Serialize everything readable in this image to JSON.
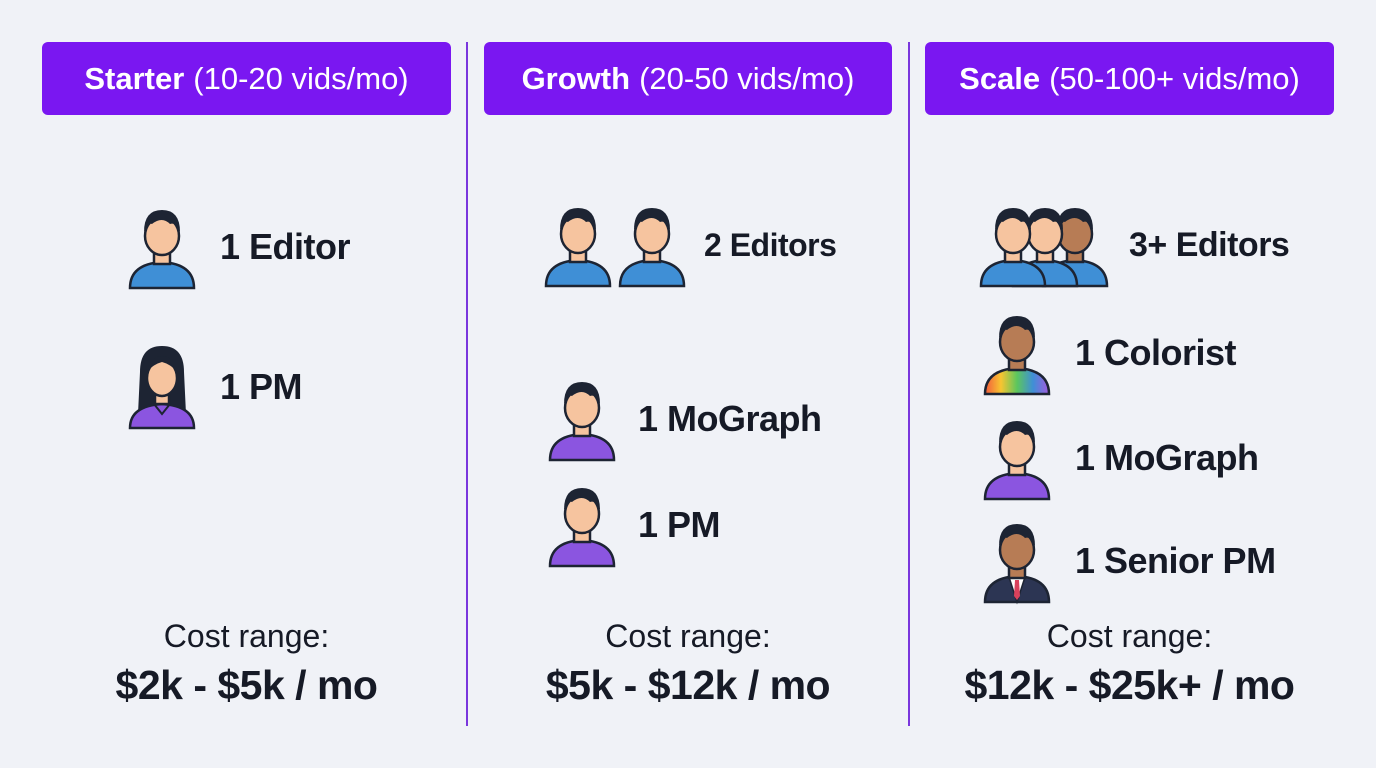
{
  "tiers": [
    {
      "name": "Starter",
      "volume": "(10-20 vids/mo)",
      "roles": [
        {
          "label": "1 Editor",
          "icon": "person-icon"
        },
        {
          "label": "1 PM",
          "icon": "person-long-hair-icon"
        }
      ],
      "cost_label": "Cost range:",
      "cost_value": "$2k - $5k / mo"
    },
    {
      "name": "Growth",
      "volume": "(20-50 vids/mo)",
      "roles": [
        {
          "label": "2 Editors",
          "icon": "two-people-icon"
        },
        {
          "label": "1 MoGraph",
          "icon": "person-icon"
        },
        {
          "label": "1 PM",
          "icon": "person-icon"
        }
      ],
      "cost_label": "Cost range:",
      "cost_value": "$5k - $12k / mo"
    },
    {
      "name": "Scale",
      "volume": "(50-100+ vids/mo)",
      "roles": [
        {
          "label": "3+ Editors",
          "icon": "group-people-icon"
        },
        {
          "label": "1 Colorist",
          "icon": "person-rainbow-shirt-icon"
        },
        {
          "label": "1 MoGraph",
          "icon": "person-icon"
        },
        {
          "label": "1 Senior PM",
          "icon": "person-suit-icon"
        }
      ],
      "cost_label": "Cost range:",
      "cost_value": "$12k - $25k+ / mo"
    }
  ],
  "colors": {
    "header_bg": "#7a17f1",
    "divider": "#7a36dd",
    "background": "#f0f2f7",
    "text": "#161a26",
    "shirt_blue": "#3f8fd6",
    "shirt_purple": "#8b55e0",
    "skin_light": "#f6c49f",
    "skin_dark": "#b77c55"
  }
}
